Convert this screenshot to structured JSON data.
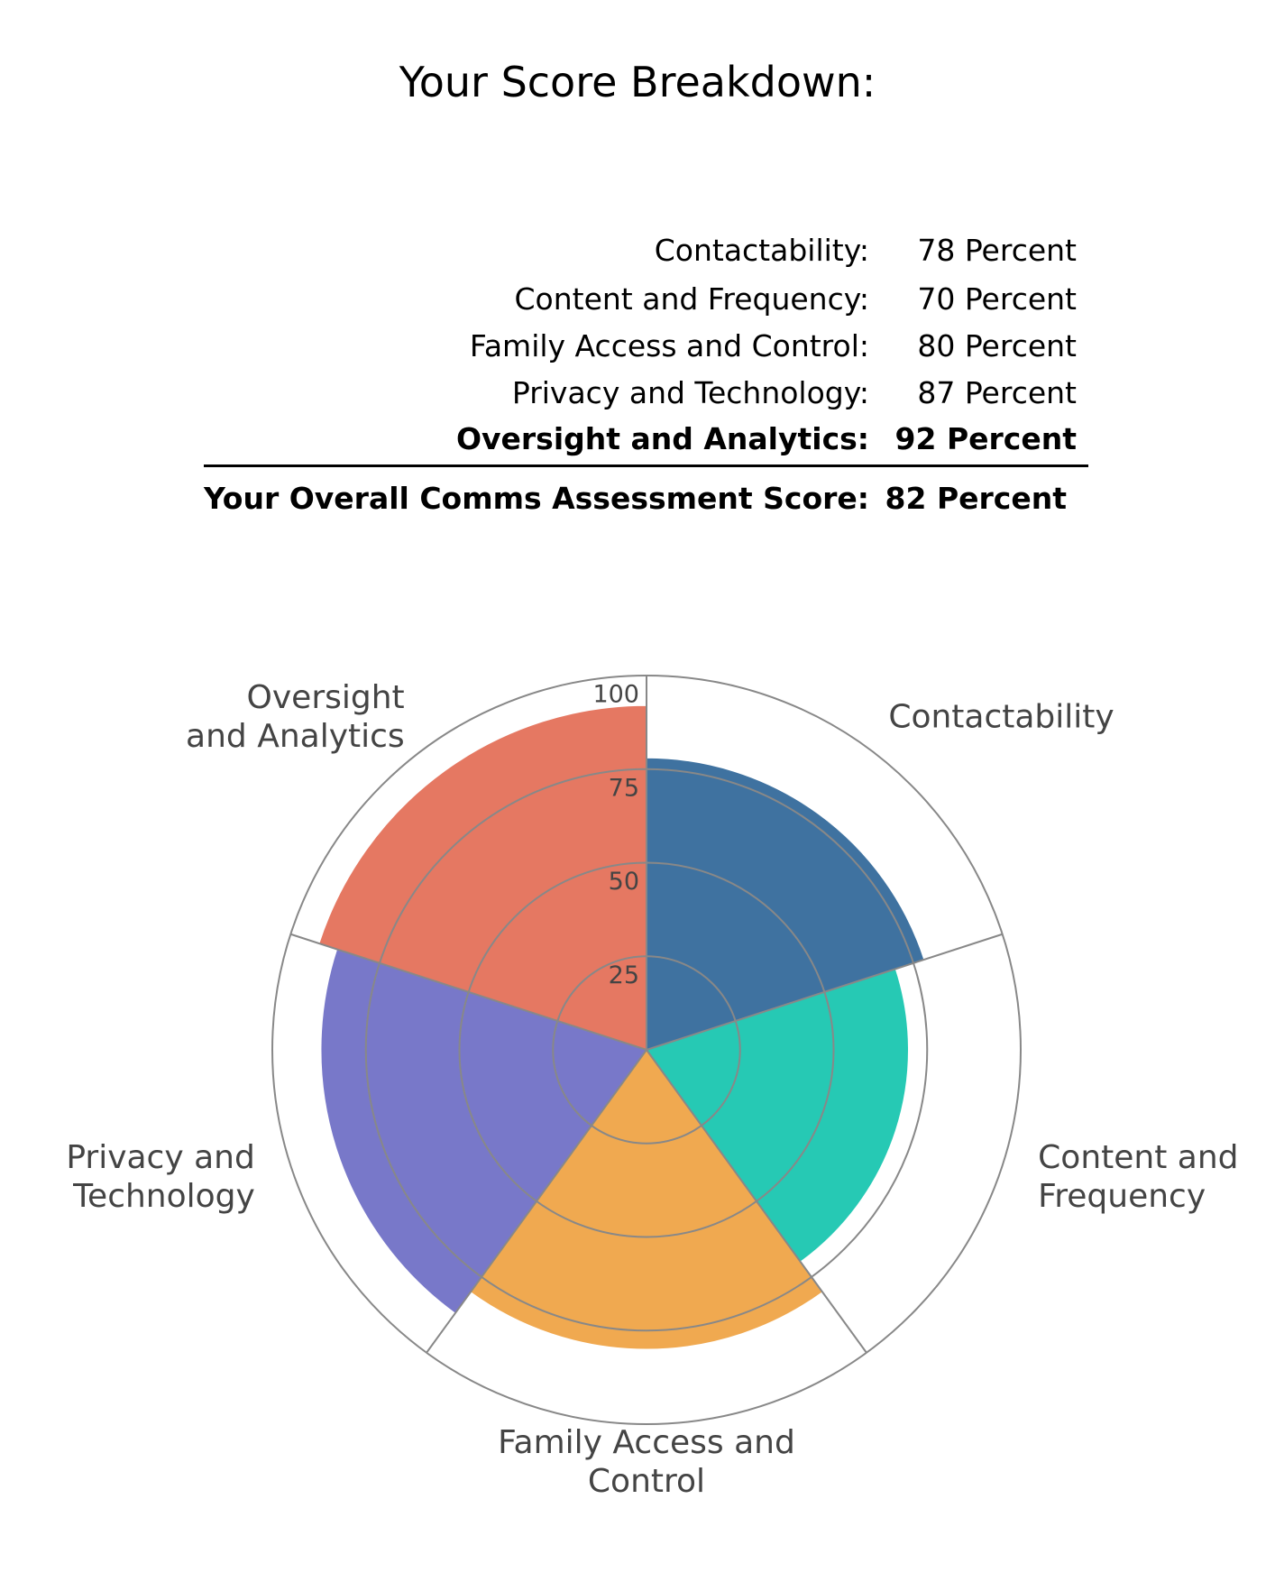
{
  "header": {
    "title": "Your Score Breakdown:"
  },
  "table": {
    "rows": [
      [
        "Contactability:",
        "78 Percent"
      ],
      [
        "Content and Frequency:",
        "70 Percent"
      ],
      [
        "Family Access and Control:",
        "80 Percent"
      ],
      [
        "Privacy and Technology:",
        "87 Percent"
      ],
      [
        "Oversight and Analytics:",
        "92 Percent"
      ]
    ],
    "total": [
      "Your Overall Comms Assessment Score:",
      "82 Percent"
    ]
  },
  "chart_data": {
    "type": "polar-bar",
    "categories": [
      "Contactability",
      "Content and Frequency",
      "Family Access and Control",
      "Privacy and Technology",
      "Oversight and Analytics"
    ],
    "values": [
      78,
      70,
      80,
      87,
      92
    ],
    "colors": [
      "#3f72a0",
      "#26c9b4",
      "#f0a950",
      "#7878c9",
      "#e57862"
    ],
    "ylim": [
      0,
      100
    ],
    "yticks": [
      25,
      50,
      75,
      100
    ],
    "grid": true
  }
}
